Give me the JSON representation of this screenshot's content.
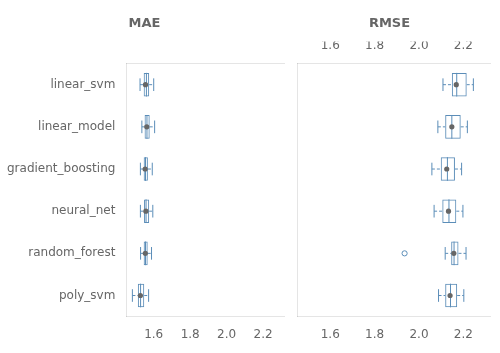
{
  "chart_data": [
    {
      "type": "box",
      "title": "MAE",
      "orientation": "horizontal",
      "categories": [
        "linear_svm",
        "linear_model",
        "gradient_boosting",
        "neural_net",
        "random_forest",
        "poly_svm"
      ],
      "values": [
        {
          "whislo": 1.525,
          "q1": 1.545,
          "med": 1.56,
          "mean": 1.555,
          "q3": 1.575,
          "whishi": 1.6,
          "fliers": []
        },
        {
          "whislo": 1.535,
          "q1": 1.55,
          "med": 1.563,
          "mean": 1.562,
          "q3": 1.578,
          "whishi": 1.605,
          "fliers": []
        },
        {
          "whislo": 1.527,
          "q1": 1.545,
          "med": 1.555,
          "mean": 1.553,
          "q3": 1.568,
          "whishi": 1.592,
          "fliers": []
        },
        {
          "whislo": 1.527,
          "q1": 1.547,
          "med": 1.558,
          "mean": 1.557,
          "q3": 1.575,
          "whishi": 1.595,
          "fliers": []
        },
        {
          "whislo": 1.528,
          "q1": 1.545,
          "med": 1.555,
          "mean": 1.554,
          "q3": 1.567,
          "whishi": 1.588,
          "fliers": []
        },
        {
          "whislo": 1.483,
          "q1": 1.513,
          "med": 1.528,
          "mean": 1.527,
          "q3": 1.548,
          "whishi": 1.572,
          "fliers": []
        }
      ],
      "color": "#5b8db8",
      "xlim": [
        1.45,
        2.32
      ],
      "xticks": [
        1.6,
        1.8,
        {
          "value": 2.0,
          "label": "2.0"
        },
        2.2
      ],
      "grid": false
    },
    {
      "type": "box",
      "title": "RMSE",
      "orientation": "horizontal",
      "categories": [
        "linear_svm",
        "linear_model",
        "gradient_boosting",
        "neural_net",
        "random_forest",
        "poly_svm"
      ],
      "values": [
        {
          "whislo": 2.108,
          "q1": 2.148,
          "med": 2.17,
          "mean": 2.168,
          "q3": 2.215,
          "whishi": 2.245,
          "fliers": []
        },
        {
          "whislo": 2.085,
          "q1": 2.118,
          "med": 2.148,
          "mean": 2.148,
          "q3": 2.188,
          "whishi": 2.218,
          "fliers": []
        },
        {
          "whislo": 2.058,
          "q1": 2.098,
          "med": 2.128,
          "mean": 2.125,
          "q3": 2.162,
          "whishi": 2.192,
          "fliers": []
        },
        {
          "whislo": 2.068,
          "q1": 2.105,
          "med": 2.135,
          "mean": 2.133,
          "q3": 2.168,
          "whishi": 2.198,
          "fliers": []
        },
        {
          "whislo": 2.118,
          "q1": 2.145,
          "med": 2.158,
          "mean": 2.157,
          "q3": 2.178,
          "whishi": 2.212,
          "fliers": [
            1.935
          ]
        },
        {
          "whislo": 2.088,
          "q1": 2.118,
          "med": 2.142,
          "mean": 2.14,
          "q3": 2.172,
          "whishi": 2.202,
          "fliers": []
        }
      ],
      "color": "#5b8db8",
      "xlim": [
        1.45,
        2.32
      ],
      "xticks": [
        1.6,
        1.8,
        {
          "value": 2.0,
          "label": "2.0"
        },
        2.2
      ],
      "x2lim": [
        1.45,
        2.32
      ],
      "x2ticks": [
        1.6,
        1.8,
        {
          "value": 2.0,
          "label": "2.0"
        },
        2.2
      ],
      "tick_labels": "x",
      "grid": false
    }
  ]
}
